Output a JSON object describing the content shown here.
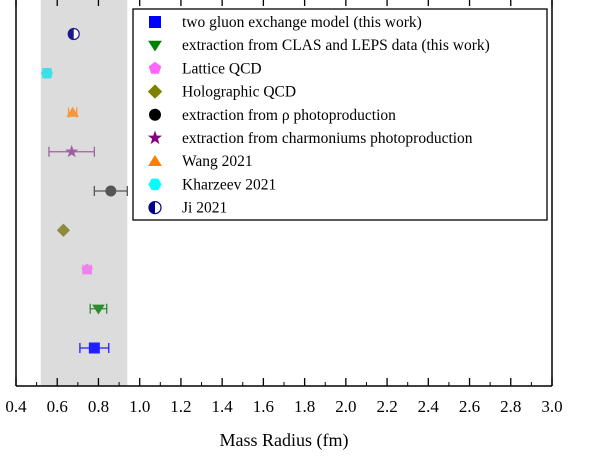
{
  "chart_data": {
    "type": "scatter",
    "xlabel": "Mass Radius (fm)",
    "xlim": [
      0.4,
      3.0
    ],
    "x_ticks": [
      "0.4",
      "0.6",
      "0.8",
      "1.0",
      "1.2",
      "1.4",
      "1.6",
      "1.8",
      "2.0",
      "2.2",
      "2.4",
      "2.6",
      "2.8",
      "3.0"
    ],
    "shaded_band": {
      "x_range": [
        0.52,
        0.94
      ],
      "color": "#dcdcdc"
    },
    "legend_position": "top-right",
    "series": [
      {
        "name": "two gluon exchange model (this work)",
        "marker": "square",
        "color": "#1f1fff",
        "legend_color": "#0000ff",
        "x": 0.78,
        "xerr": [
          0.07,
          0.07
        ]
      },
      {
        "name": "extraction from CLAS and LEPS data (this work)",
        "marker": "triangle-down",
        "color": "#2e8b2e",
        "legend_color": "#008000",
        "x": 0.8,
        "xerr": [
          0.04,
          0.04
        ]
      },
      {
        "name": "Lattice QCD",
        "marker": "pentagon",
        "color": "#ee82ee",
        "legend_color": "#ff66ff",
        "x": 0.745,
        "xerr": [
          0.02,
          0.02
        ]
      },
      {
        "name": "Holographic QCD",
        "marker": "diamond",
        "color": "#8b8b3a",
        "legend_color": "#808000",
        "x": 0.63,
        "xerr": [
          0,
          0
        ]
      },
      {
        "name": "extraction from ρ photoproduction",
        "marker": "circle",
        "color": "#555555",
        "legend_color": "#000000",
        "x": 0.86,
        "xerr": [
          0.08,
          0.08
        ]
      },
      {
        "name": "extraction from charmoniums photoproduction",
        "marker": "star",
        "color": "#a060a0",
        "legend_color": "#800080",
        "x": 0.67,
        "xerr": [
          0.11,
          0.11
        ]
      },
      {
        "name": "Wang 2021",
        "marker": "triangle-up",
        "color": "#f59a3c",
        "legend_color": "#ff8000",
        "x": 0.675,
        "xerr": [
          0.02,
          0.02
        ]
      },
      {
        "name": "Kharzeev 2021",
        "marker": "hexagon",
        "color": "#3ee0e8",
        "legend_color": "#00ffff",
        "x": 0.55,
        "xerr": [
          0.02,
          0.02
        ]
      },
      {
        "name": "Ji 2021",
        "marker": "half-circle",
        "color": "#1a1a8c",
        "legend_color": "#00008b",
        "x": 0.68,
        "xerr": [
          0.01,
          0.01
        ]
      }
    ]
  }
}
